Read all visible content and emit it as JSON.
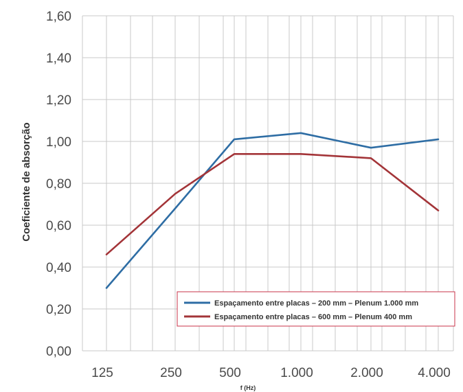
{
  "chart_data": {
    "type": "line",
    "xlabel": "f (Hz)",
    "ylabel": "Coeficiente de absorção",
    "categories": [
      "125",
      "250",
      "500",
      "1.000",
      "2.000",
      "4.000"
    ],
    "ylim": [
      0,
      1.6
    ],
    "y_ticks": [
      "0,00",
      "0,20",
      "0,40",
      "0,60",
      "0,80",
      "1,00",
      "1,20",
      "1,40",
      "1,60"
    ],
    "grid": true,
    "legend_position": "bottom-right",
    "series": [
      {
        "name": "Espaçamento entre placas – 200 mm – Plenum 1.000 mm",
        "color": "#2e6da4",
        "values": [
          0.3,
          0.68,
          1.01,
          1.04,
          0.97,
          1.01
        ]
      },
      {
        "name": "Espaçamento entre placas – 600 mm – Plenum 400 mm",
        "color": "#a33438",
        "values": [
          0.46,
          0.75,
          0.94,
          0.94,
          0.92,
          0.67
        ]
      }
    ],
    "legend_border_color": "#c8334a"
  }
}
